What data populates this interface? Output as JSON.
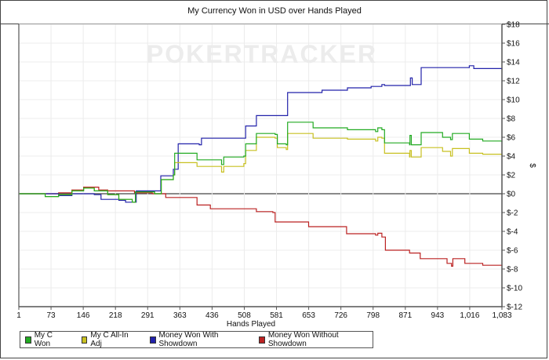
{
  "chart_data": {
    "type": "line",
    "title": "My Currency Won in USD over Hands Played",
    "xlabel": "Hands Played",
    "ylabel": "$",
    "watermark": "POKERTRACKER",
    "xlim": [
      1,
      1083
    ],
    "ylim": [
      -12,
      18
    ],
    "grid": true,
    "legend_position": "bottom",
    "x_ticks": [
      "1",
      "73",
      "146",
      "218",
      "291",
      "363",
      "436",
      "508",
      "581",
      "653",
      "726",
      "798",
      "871",
      "943",
      "1,016",
      "1,083"
    ],
    "y_ticks": [
      {
        "value": 18,
        "label": "$18"
      },
      {
        "value": 16,
        "label": "$16"
      },
      {
        "value": 14,
        "label": "$14"
      },
      {
        "value": 12,
        "label": "$12"
      },
      {
        "value": 10,
        "label": "$10"
      },
      {
        "value": 8,
        "label": "$8"
      },
      {
        "value": 6,
        "label": "$6"
      },
      {
        "value": 4,
        "label": "$4"
      },
      {
        "value": 2,
        "label": "$2"
      },
      {
        "value": 0,
        "label": "$0"
      },
      {
        "value": -2,
        "label": "$-2"
      },
      {
        "value": -4,
        "label": "$-4"
      },
      {
        "value": -6,
        "label": "$-6"
      },
      {
        "value": -8,
        "label": "$-8"
      },
      {
        "value": -10,
        "label": "$-10"
      },
      {
        "value": -12,
        "label": "$-12"
      }
    ],
    "series": [
      {
        "name": "My C Won",
        "color": "#22aa22",
        "points": [
          [
            1,
            0
          ],
          [
            40,
            0
          ],
          [
            60,
            -0.3
          ],
          [
            90,
            -0.1
          ],
          [
            120,
            0.3
          ],
          [
            146,
            0.6
          ],
          [
            170,
            0.3
          ],
          [
            200,
            -0.1
          ],
          [
            225,
            -0.6
          ],
          [
            255,
            -0.9
          ],
          [
            262,
            0.2
          ],
          [
            300,
            0.2
          ],
          [
            305,
            0
          ],
          [
            320,
            1.5
          ],
          [
            347,
            2.0
          ],
          [
            350,
            4.3
          ],
          [
            400,
            3.6
          ],
          [
            455,
            3.1
          ],
          [
            460,
            3.9
          ],
          [
            505,
            4.0
          ],
          [
            509,
            5.3
          ],
          [
            533,
            6.4
          ],
          [
            575,
            6.3
          ],
          [
            580,
            5.3
          ],
          [
            600,
            5.2
          ],
          [
            603,
            7.6
          ],
          [
            660,
            7.0
          ],
          [
            737,
            6.8
          ],
          [
            800,
            6.6
          ],
          [
            805,
            7.0
          ],
          [
            814,
            6.8
          ],
          [
            820,
            5.4
          ],
          [
            876,
            5.2
          ],
          [
            877,
            6.2
          ],
          [
            880,
            5.2
          ],
          [
            900,
            5.2
          ],
          [
            902,
            6.5
          ],
          [
            950,
            6.0
          ],
          [
            968,
            5.75
          ],
          [
            972,
            6.4
          ],
          [
            1010,
            5.8
          ],
          [
            1040,
            5.6
          ],
          [
            1083,
            5.5
          ]
        ]
      },
      {
        "name": "My C All-In Adj",
        "color": "#c8c020",
        "points": [
          [
            1,
            0
          ],
          [
            40,
            0
          ],
          [
            60,
            -0.3
          ],
          [
            90,
            -0.1
          ],
          [
            120,
            0.3
          ],
          [
            146,
            0.6
          ],
          [
            170,
            0.3
          ],
          [
            200,
            -0.1
          ],
          [
            225,
            -0.6
          ],
          [
            255,
            -0.9
          ],
          [
            262,
            0.2
          ],
          [
            300,
            0.2
          ],
          [
            305,
            0
          ],
          [
            320,
            1.5
          ],
          [
            347,
            2.0
          ],
          [
            350,
            3.3
          ],
          [
            400,
            2.9
          ],
          [
            455,
            2.3
          ],
          [
            460,
            2.9
          ],
          [
            505,
            3.2
          ],
          [
            509,
            4.6
          ],
          [
            533,
            6.0
          ],
          [
            575,
            5.9
          ],
          [
            580,
            4.9
          ],
          [
            600,
            4.7
          ],
          [
            603,
            6.4
          ],
          [
            660,
            5.9
          ],
          [
            737,
            5.8
          ],
          [
            800,
            5.6
          ],
          [
            805,
            6.0
          ],
          [
            814,
            5.9
          ],
          [
            820,
            4.3
          ],
          [
            876,
            3.9
          ],
          [
            877,
            4.6
          ],
          [
            880,
            3.9
          ],
          [
            900,
            3.9
          ],
          [
            902,
            4.9
          ],
          [
            950,
            4.5
          ],
          [
            968,
            4.0
          ],
          [
            972,
            4.8
          ],
          [
            1010,
            4.3
          ],
          [
            1040,
            4.2
          ],
          [
            1083,
            4.0
          ]
        ]
      },
      {
        "name": "Money Won With Showdown",
        "color": "#2222aa",
        "points": [
          [
            1,
            0
          ],
          [
            60,
            0
          ],
          [
            90,
            -0.2
          ],
          [
            120,
            0
          ],
          [
            170,
            -0.1
          ],
          [
            185,
            -0.6
          ],
          [
            225,
            -0.7
          ],
          [
            240,
            -0.9
          ],
          [
            262,
            -0.9
          ],
          [
            264,
            0.3
          ],
          [
            300,
            0.3
          ],
          [
            319,
            1.9
          ],
          [
            347,
            2.6
          ],
          [
            358,
            5.3
          ],
          [
            405,
            5.2
          ],
          [
            410,
            5.9
          ],
          [
            505,
            5.9
          ],
          [
            509,
            7.2
          ],
          [
            530,
            7.2
          ],
          [
            533,
            8.3
          ],
          [
            600,
            8.3
          ],
          [
            603,
            10.75
          ],
          [
            680,
            11.0
          ],
          [
            737,
            11.25
          ],
          [
            790,
            11.4
          ],
          [
            814,
            11.6
          ],
          [
            820,
            11.5
          ],
          [
            876,
            11.5
          ],
          [
            878,
            12.3
          ],
          [
            882,
            11.6
          ],
          [
            900,
            11.6
          ],
          [
            902,
            13.4
          ],
          [
            1010,
            13.6
          ],
          [
            1020,
            13.3
          ],
          [
            1083,
            13.2
          ]
        ]
      },
      {
        "name": "Money Won Without Showdown",
        "color": "#bb2222",
        "points": [
          [
            1,
            0
          ],
          [
            60,
            0
          ],
          [
            90,
            0.1
          ],
          [
            120,
            0.4
          ],
          [
            146,
            0.7
          ],
          [
            180,
            0.4
          ],
          [
            200,
            0.3
          ],
          [
            260,
            0.1
          ],
          [
            300,
            0
          ],
          [
            330,
            -0.4
          ],
          [
            400,
            -1.2
          ],
          [
            430,
            -1.6
          ],
          [
            533,
            -1.9
          ],
          [
            570,
            -2.0
          ],
          [
            575,
            -3.0
          ],
          [
            650,
            -3.5
          ],
          [
            735,
            -4.25
          ],
          [
            800,
            -4.4
          ],
          [
            805,
            -4.2
          ],
          [
            814,
            -4.6
          ],
          [
            822,
            -6.0
          ],
          [
            876,
            -6.3
          ],
          [
            900,
            -6.9
          ],
          [
            960,
            -7.4
          ],
          [
            970,
            -7.7
          ],
          [
            973,
            -6.9
          ],
          [
            1000,
            -7.4
          ],
          [
            1040,
            -7.6
          ],
          [
            1083,
            -7.7
          ]
        ]
      }
    ]
  }
}
